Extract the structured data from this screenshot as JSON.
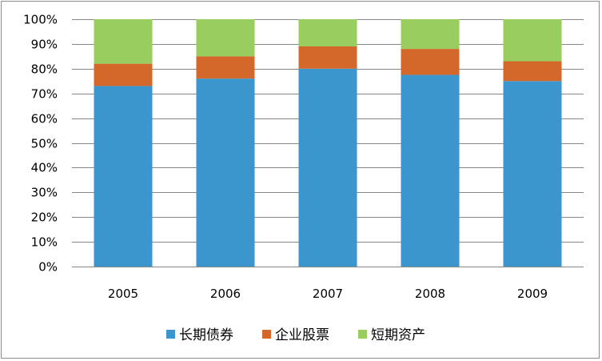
{
  "chart_data": {
    "type": "bar",
    "stacked": "percent",
    "categories": [
      "2005",
      "2006",
      "2007",
      "2008",
      "2009"
    ],
    "series": [
      {
        "name": "长期债券",
        "color": "#3a96cd",
        "values": [
          73,
          76,
          80,
          77.5,
          75
        ]
      },
      {
        "name": "企业股票",
        "color": "#d4682b",
        "values": [
          9,
          9,
          9,
          10.5,
          8
        ]
      },
      {
        "name": "短期资产",
        "color": "#9acd5f",
        "values": [
          18,
          15,
          11,
          12,
          17
        ]
      }
    ],
    "ylim": [
      0,
      100
    ],
    "yticks": [
      "0%",
      "10%",
      "20%",
      "30%",
      "40%",
      "50%",
      "60%",
      "70%",
      "80%",
      "90%",
      "100%"
    ],
    "grid": true,
    "legend": "bottom",
    "title": "",
    "xlabel": "",
    "ylabel": ""
  }
}
